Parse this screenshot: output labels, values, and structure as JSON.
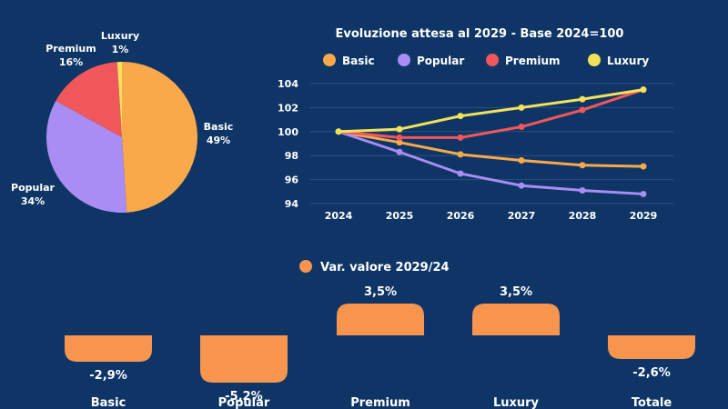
{
  "chart_data": [
    {
      "type": "pie",
      "slices": [
        {
          "label": "Basic",
          "value": 49,
          "display": "49%",
          "color": "#f9a94a"
        },
        {
          "label": "Popular",
          "value": 34,
          "display": "34%",
          "color": "#a98cf4"
        },
        {
          "label": "Premium",
          "value": 16,
          "display": "16%",
          "color": "#f0575b"
        },
        {
          "label": "Luxury",
          "value": 1,
          "display": "1%",
          "color": "#f2e25a"
        }
      ]
    },
    {
      "type": "line",
      "title": "Evoluzione attesa al 2029 - Base 2024=100",
      "x": [
        "2024",
        "2025",
        "2026",
        "2027",
        "2028",
        "2029"
      ],
      "ylim": [
        94,
        104
      ],
      "yticks": [
        94,
        96,
        98,
        100,
        102,
        104
      ],
      "series": [
        {
          "name": "Basic",
          "color": "#f9a94a",
          "values": [
            100,
            99.1,
            98.1,
            97.6,
            97.2,
            97.1
          ]
        },
        {
          "name": "Popular",
          "color": "#a98cf4",
          "values": [
            100,
            98.3,
            96.5,
            95.5,
            95.1,
            94.8
          ]
        },
        {
          "name": "Premium",
          "color": "#f0575b",
          "values": [
            100,
            99.5,
            99.5,
            100.4,
            101.8,
            103.5
          ]
        },
        {
          "name": "Luxury",
          "color": "#f2e25a",
          "values": [
            100,
            100.2,
            101.3,
            102.0,
            102.7,
            103.5
          ]
        }
      ]
    },
    {
      "type": "bar",
      "legend": "Var. valore 2029/24",
      "color": "#f7954f",
      "categories": [
        "Basic",
        "Popular",
        "Premium",
        "Luxury",
        "Totale"
      ],
      "values": [
        -2.9,
        -5.2,
        3.5,
        3.5,
        -2.6
      ],
      "value_labels": [
        "-2,9%",
        "-5,2%",
        "3,5%",
        "3,5%",
        "-2,6%"
      ]
    }
  ]
}
